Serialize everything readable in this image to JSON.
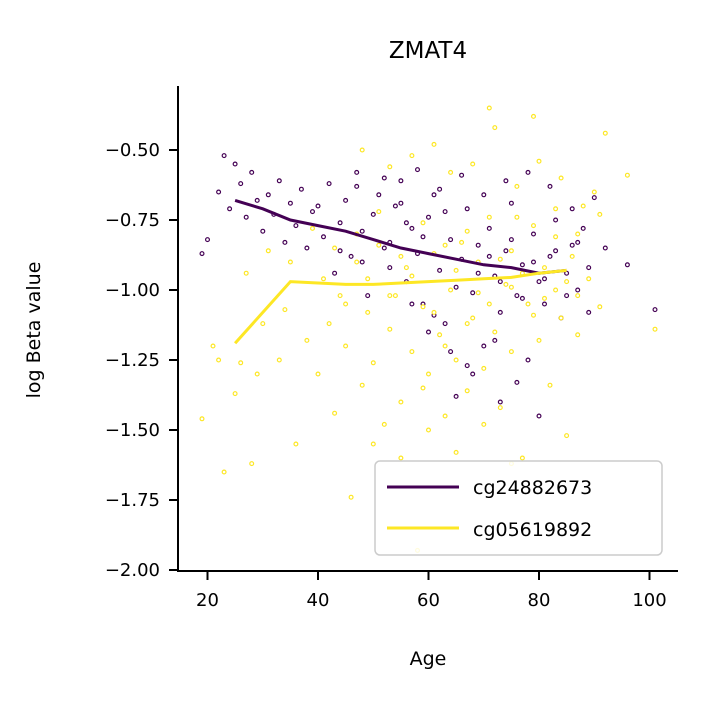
{
  "chart_data": {
    "type": "scatter",
    "title": "ZMAT4",
    "xlabel": "Age",
    "ylabel": "log Beta value",
    "xlim": [
      15,
      105
    ],
    "ylim": [
      -2.0,
      -0.3
    ],
    "xticks": [
      20,
      40,
      60,
      80,
      100
    ],
    "xtick_labels": [
      "20",
      "40",
      "60",
      "80",
      "100"
    ],
    "yticks": [
      -2.0,
      -1.75,
      -1.5,
      -1.25,
      -1.0,
      -0.75,
      -0.5
    ],
    "ytick_labels": [
      "−2.00",
      "−1.75",
      "−1.50",
      "−1.25",
      "−1.00",
      "−0.75",
      "−0.50"
    ],
    "grid": false,
    "legend_position": "lower-right",
    "series": [
      {
        "name": "cg24882673",
        "color": "#440154",
        "trend": {
          "x": [
            25,
            30,
            35,
            40,
            45,
            50,
            55,
            60,
            65,
            70,
            75,
            80,
            85
          ],
          "y": [
            -0.68,
            -0.71,
            -0.75,
            -0.77,
            -0.79,
            -0.82,
            -0.85,
            -0.87,
            -0.89,
            -0.91,
            -0.92,
            -0.94,
            -0.93
          ]
        },
        "points": [
          [
            19,
            -0.87
          ],
          [
            20,
            -0.82
          ],
          [
            22,
            -0.65
          ],
          [
            23,
            -0.52
          ],
          [
            24,
            -0.71
          ],
          [
            25,
            -0.55
          ],
          [
            26,
            -0.62
          ],
          [
            27,
            -0.74
          ],
          [
            28,
            -0.58
          ],
          [
            29,
            -0.68
          ],
          [
            30,
            -0.79
          ],
          [
            31,
            -0.66
          ],
          [
            32,
            -0.73
          ],
          [
            33,
            -0.61
          ],
          [
            34,
            -0.83
          ],
          [
            35,
            -0.69
          ],
          [
            36,
            -0.77
          ],
          [
            37,
            -0.64
          ],
          [
            38,
            -0.85
          ],
          [
            39,
            -0.72
          ],
          [
            40,
            -0.7
          ],
          [
            41,
            -0.81
          ],
          [
            42,
            -0.62
          ],
          [
            43,
            -0.94
          ],
          [
            44,
            -0.76
          ],
          [
            45,
            -0.68
          ],
          [
            46,
            -0.88
          ],
          [
            47,
            -0.58
          ],
          [
            48,
            -0.79
          ],
          [
            49,
            -1.02
          ],
          [
            50,
            -0.73
          ],
          [
            51,
            -0.66
          ],
          [
            52,
            -0.85
          ],
          [
            53,
            -0.92
          ],
          [
            54,
            -0.7
          ],
          [
            55,
            -0.61
          ],
          [
            56,
            -0.97
          ],
          [
            57,
            -0.78
          ],
          [
            58,
            -0.87
          ],
          [
            59,
            -1.05
          ],
          [
            60,
            -0.74
          ],
          [
            61,
            -0.66
          ],
          [
            62,
            -0.93
          ],
          [
            63,
            -1.12
          ],
          [
            64,
            -0.82
          ],
          [
            65,
            -1.38
          ],
          [
            66,
            -0.89
          ],
          [
            67,
            -0.71
          ],
          [
            68,
            -1.01
          ],
          [
            69,
            -0.84
          ],
          [
            70,
            -1.2
          ],
          [
            71,
            -0.78
          ],
          [
            72,
            -0.95
          ],
          [
            73,
            -1.08
          ],
          [
            74,
            -0.86
          ],
          [
            75,
            -0.69
          ],
          [
            76,
            -1.02
          ],
          [
            77,
            -0.91
          ],
          [
            78,
            -1.25
          ],
          [
            79,
            -0.8
          ],
          [
            80,
            -0.97
          ],
          [
            81,
            -1.05
          ],
          [
            82,
            -0.88
          ],
          [
            83,
            -0.75
          ],
          [
            84,
            -1.1
          ],
          [
            85,
            -0.94
          ],
          [
            86,
            -0.84
          ],
          [
            87,
            -1.0
          ],
          [
            88,
            -0.78
          ],
          [
            89,
            -0.92
          ],
          [
            90,
            -0.67
          ],
          [
            92,
            -0.85
          ],
          [
            96,
            -0.91
          ],
          [
            101,
            -1.07
          ],
          [
            47,
            -0.63
          ],
          [
            52,
            -0.6
          ],
          [
            55,
            -0.69
          ],
          [
            58,
            -0.57
          ],
          [
            62,
            -0.64
          ],
          [
            66,
            -0.59
          ],
          [
            70,
            -0.66
          ],
          [
            74,
            -0.61
          ],
          [
            78,
            -0.58
          ],
          [
            82,
            -0.63
          ],
          [
            86,
            -0.71
          ],
          [
            60,
            -1.15
          ],
          [
            64,
            -1.22
          ],
          [
            68,
            -1.3
          ],
          [
            72,
            -1.18
          ],
          [
            76,
            -1.33
          ],
          [
            80,
            -1.45
          ],
          [
            73,
            -1.4
          ],
          [
            67,
            -1.27
          ],
          [
            57,
            -1.05
          ],
          [
            61,
            -1.09
          ],
          [
            65,
            -0.99
          ],
          [
            69,
            -0.94
          ],
          [
            73,
            -0.97
          ],
          [
            77,
            -1.03
          ],
          [
            81,
            -0.96
          ],
          [
            85,
            -1.02
          ],
          [
            89,
            -1.08
          ],
          [
            44,
            -0.86
          ],
          [
            48,
            -0.9
          ],
          [
            53,
            -0.83
          ],
          [
            56,
            -0.76
          ],
          [
            59,
            -0.81
          ],
          [
            63,
            -0.72
          ],
          [
            71,
            -0.88
          ],
          [
            75,
            -0.82
          ],
          [
            79,
            -0.9
          ],
          [
            83,
            -0.86
          ],
          [
            87,
            -0.83
          ]
        ]
      },
      {
        "name": "cg05619892",
        "color": "#fde725",
        "trend": {
          "x": [
            25,
            30,
            35,
            40,
            45,
            50,
            55,
            60,
            65,
            70,
            75,
            80,
            85
          ],
          "y": [
            -1.19,
            -1.08,
            -0.97,
            -0.975,
            -0.98,
            -0.98,
            -0.975,
            -0.97,
            -0.965,
            -0.96,
            -0.955,
            -0.94,
            -0.93
          ]
        },
        "points": [
          [
            19,
            -1.46
          ],
          [
            21,
            -1.2
          ],
          [
            22,
            -1.25
          ],
          [
            23,
            -1.65
          ],
          [
            25,
            -1.37
          ],
          [
            26,
            -1.26
          ],
          [
            27,
            -0.94
          ],
          [
            28,
            -1.62
          ],
          [
            29,
            -1.3
          ],
          [
            30,
            -1.12
          ],
          [
            31,
            -0.86
          ],
          [
            33,
            -1.25
          ],
          [
            34,
            -1.07
          ],
          [
            35,
            -0.9
          ],
          [
            36,
            -1.55
          ],
          [
            38,
            -1.18
          ],
          [
            40,
            -1.3
          ],
          [
            41,
            -0.96
          ],
          [
            42,
            -1.12
          ],
          [
            43,
            -1.44
          ],
          [
            44,
            -1.02
          ],
          [
            45,
            -1.2
          ],
          [
            46,
            -1.74
          ],
          [
            47,
            -0.9
          ],
          [
            48,
            -1.34
          ],
          [
            49,
            -1.08
          ],
          [
            50,
            -1.26
          ],
          [
            51,
            -0.84
          ],
          [
            52,
            -1.48
          ],
          [
            53,
            -1.14
          ],
          [
            54,
            -1.02
          ],
          [
            55,
            -1.4
          ],
          [
            56,
            -0.92
          ],
          [
            57,
            -1.22
          ],
          [
            58,
            -1.93
          ],
          [
            59,
            -1.06
          ],
          [
            60,
            -1.3
          ],
          [
            61,
            -0.87
          ],
          [
            62,
            -1.16
          ],
          [
            63,
            -1.45
          ],
          [
            64,
            -1.0
          ],
          [
            65,
            -1.25
          ],
          [
            66,
            -0.83
          ],
          [
            67,
            -1.36
          ],
          [
            68,
            -1.1
          ],
          [
            69,
            -0.9
          ],
          [
            70,
            -1.28
          ],
          [
            71,
            -0.35
          ],
          [
            72,
            -1.15
          ],
          [
            73,
            -1.42
          ],
          [
            74,
            -0.98
          ],
          [
            75,
            -1.22
          ],
          [
            76,
            -0.74
          ],
          [
            77,
            -1.6
          ],
          [
            78,
            -1.05
          ],
          [
            79,
            -0.38
          ],
          [
            80,
            -1.18
          ],
          [
            81,
            -0.92
          ],
          [
            82,
            -1.34
          ],
          [
            83,
            -0.81
          ],
          [
            84,
            -1.1
          ],
          [
            85,
            -1.52
          ],
          [
            86,
            -0.88
          ],
          [
            87,
            -1.02
          ],
          [
            88,
            -0.7
          ],
          [
            89,
            -0.96
          ],
          [
            90,
            -0.65
          ],
          [
            91,
            -1.06
          ],
          [
            92,
            -0.44
          ],
          [
            96,
            -0.59
          ],
          [
            101,
            -1.14
          ],
          [
            48,
            -0.5
          ],
          [
            53,
            -0.56
          ],
          [
            57,
            -0.52
          ],
          [
            61,
            -0.48
          ],
          [
            64,
            -0.58
          ],
          [
            68,
            -0.55
          ],
          [
            72,
            -0.42
          ],
          [
            76,
            -0.63
          ],
          [
            80,
            -0.54
          ],
          [
            84,
            -0.6
          ],
          [
            50,
            -1.55
          ],
          [
            55,
            -1.6
          ],
          [
            60,
            -1.5
          ],
          [
            65,
            -1.58
          ],
          [
            70,
            -1.48
          ],
          [
            75,
            -1.62
          ],
          [
            59,
            -1.35
          ],
          [
            63,
            -1.2
          ],
          [
            67,
            -1.12
          ],
          [
            71,
            -1.05
          ],
          [
            75,
            -0.99
          ],
          [
            79,
            -1.09
          ],
          [
            83,
            -1.0
          ],
          [
            87,
            -1.16
          ],
          [
            45,
            -1.05
          ],
          [
            49,
            -0.96
          ],
          [
            53,
            -1.02
          ],
          [
            57,
            -0.95
          ],
          [
            61,
            -1.08
          ],
          [
            65,
            -0.93
          ],
          [
            69,
            -1.01
          ],
          [
            73,
            -0.89
          ],
          [
            77,
            -0.94
          ],
          [
            81,
            -1.03
          ],
          [
            85,
            -0.97
          ],
          [
            39,
            -0.78
          ],
          [
            43,
            -0.85
          ],
          [
            47,
            -0.8
          ],
          [
            51,
            -0.72
          ],
          [
            55,
            -0.88
          ],
          [
            59,
            -0.76
          ],
          [
            63,
            -0.84
          ],
          [
            67,
            -0.79
          ],
          [
            71,
            -0.74
          ],
          [
            75,
            -0.86
          ],
          [
            79,
            -0.77
          ],
          [
            83,
            -0.71
          ],
          [
            87,
            -0.8
          ],
          [
            91,
            -0.73
          ]
        ]
      }
    ]
  }
}
